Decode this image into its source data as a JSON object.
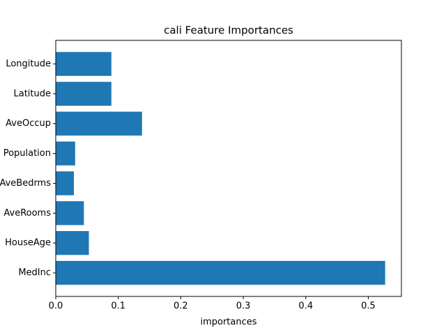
{
  "chart_data": {
    "type": "barh",
    "title": "cali Feature Importances",
    "xlabel": "importances",
    "categories": [
      "MedInc",
      "HouseAge",
      "AveRooms",
      "AveBedrms",
      "Population",
      "AveOccup",
      "Latitude",
      "Longitude"
    ],
    "values": [
      0.527,
      0.053,
      0.045,
      0.029,
      0.031,
      0.138,
      0.089,
      0.089
    ],
    "color": "#1f77b4",
    "xlim": [
      0,
      0.553
    ],
    "xticks": [
      {
        "value": 0,
        "label": "0.0"
      },
      0.1,
      0.2,
      0.3,
      0.4,
      0.5
    ]
  }
}
